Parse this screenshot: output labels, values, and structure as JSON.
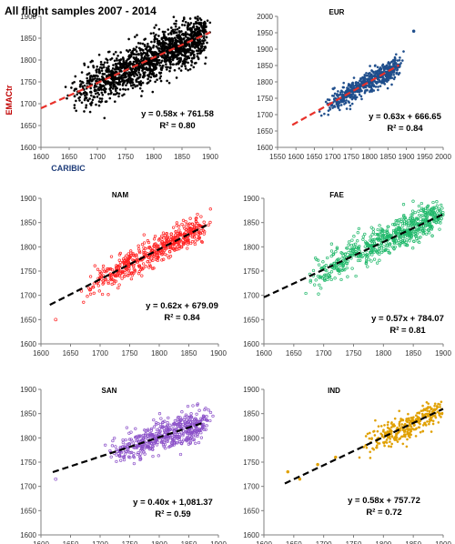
{
  "chart_data": [
    {
      "type": "scatter",
      "title": "All flight samples 2007 - 2014",
      "xlabel": "CARIBIC",
      "ylabel": "EMACtr",
      "xlim": [
        1600,
        1900
      ],
      "ylim": [
        1600,
        1900
      ],
      "xticks": [
        "1600",
        "1650",
        "1700",
        "1750",
        "1800",
        "1850",
        "1900"
      ],
      "yticks": [
        "1600",
        "1650",
        "1700",
        "1750",
        "1800",
        "1850",
        "1900"
      ],
      "point_color": "#000000",
      "fit_color": "#e8312a",
      "fit": {
        "slope": 0.58,
        "intercept": 761.58,
        "x_range": [
          1600,
          1900
        ]
      },
      "equation": "y = 0.58x + 761.58",
      "r2": "R² = 0.80",
      "cloud": {
        "x_range": [
          1620,
          1890
        ],
        "slope": 0.58,
        "intercept": 761.58,
        "spread": 26,
        "count": 1500
      },
      "grid": false
    },
    {
      "type": "scatter",
      "title": "EUR",
      "xlabel": "",
      "ylabel": "",
      "xlim": [
        1550,
        2000
      ],
      "ylim": [
        1600,
        2000
      ],
      "xticks": [
        "1550",
        "1600",
        "1650",
        "1700",
        "1750",
        "1800",
        "1850",
        "1900",
        "1950",
        "2000"
      ],
      "yticks": [
        "1600",
        "1650",
        "1700",
        "1750",
        "1800",
        "1850",
        "1900",
        "1950",
        "2000"
      ],
      "point_color": "#1f4e8c",
      "fit_color": "#e8312a",
      "fit": {
        "slope": 0.63,
        "intercept": 666.65,
        "x_range": [
          1590,
          1880
        ]
      },
      "equation": "y = 0.63x + 666.65",
      "r2": "R² = 0.84",
      "cloud": {
        "x_range": [
          1640,
          1875
        ],
        "slope": 0.63,
        "intercept": 666.65,
        "spread": 16,
        "count": 600
      },
      "outliers": [
        {
          "x": 1920,
          "y": 1955
        }
      ],
      "grid": false
    },
    {
      "type": "scatter",
      "title": "NAM",
      "xlabel": "",
      "ylabel": "",
      "xlim": [
        1600,
        1900
      ],
      "ylim": [
        1600,
        1900
      ],
      "xticks": [
        "1600",
        "1650",
        "1700",
        "1750",
        "1800",
        "1850",
        "1900"
      ],
      "yticks": [
        "1600",
        "1650",
        "1700",
        "1750",
        "1800",
        "1850",
        "1900"
      ],
      "point_color": "#ff2020",
      "fit_color": "#000000",
      "fit": {
        "slope": 0.62,
        "intercept": 679.09,
        "x_range": [
          1615,
          1880
        ]
      },
      "equation": "y = 0.62x + 679.09",
      "r2": "R² = 0.84",
      "cloud": {
        "x_range": [
          1640,
          1870
        ],
        "slope": 0.62,
        "intercept": 679.09,
        "spread": 14,
        "count": 550
      },
      "outliers": [
        {
          "x": 1625,
          "y": 1650
        }
      ],
      "grid": false
    },
    {
      "type": "scatter",
      "title": "FAE",
      "xlabel": "",
      "ylabel": "",
      "xlim": [
        1600,
        1900
      ],
      "ylim": [
        1600,
        1900
      ],
      "xticks": [
        "1600",
        "1650",
        "1700",
        "1750",
        "1800",
        "1850",
        "1900"
      ],
      "yticks": [
        "1600",
        "1650",
        "1700",
        "1750",
        "1800",
        "1850",
        "1900"
      ],
      "point_color": "#1fb86a",
      "fit_color": "#000000",
      "fit": {
        "slope": 0.57,
        "intercept": 784.07,
        "x_range": [
          1600,
          1900
        ]
      },
      "equation": "y = 0.57x + 784.07",
      "r2": "R² = 0.81",
      "cloud": {
        "x_range": [
          1640,
          1895
        ],
        "slope": 0.57,
        "intercept": 784.07,
        "spread": 17,
        "count": 650
      },
      "grid": false
    },
    {
      "type": "scatter",
      "title": "SAN",
      "xlabel": "",
      "ylabel": "",
      "xlim": [
        1600,
        1900
      ],
      "ylim": [
        1600,
        1900
      ],
      "xticks": [
        "1600",
        "1650",
        "1700",
        "1750",
        "1800",
        "1850",
        "1900"
      ],
      "yticks": [
        "1600",
        "1650",
        "1700",
        "1750",
        "1800",
        "1850",
        "1900"
      ],
      "point_color": "#8a4fc8",
      "fit_color": "#000000",
      "fit": {
        "slope": 0.4,
        "intercept": 1081.37,
        "x_range": [
          1620,
          1875
        ]
      },
      "equation": "y = 0.40x + 1,081.37",
      "r2": "R² = 0.59",
      "cloud": {
        "x_range": [
          1690,
          1875
        ],
        "slope": 0.4,
        "intercept": 1081.37,
        "spread": 15,
        "count": 500
      },
      "outliers": [
        {
          "x": 1625,
          "y": 1715
        }
      ],
      "grid": false
    },
    {
      "type": "scatter",
      "title": "IND",
      "xlabel": "",
      "ylabel": "",
      "xlim": [
        1600,
        1900
      ],
      "ylim": [
        1600,
        1900
      ],
      "xticks": [
        "1600",
        "1650",
        "1700",
        "1750",
        "1800",
        "1850",
        "1900"
      ],
      "yticks": [
        "1600",
        "1650",
        "1700",
        "1750",
        "1800",
        "1850",
        "1900"
      ],
      "point_color": "#e0a000",
      "fit_color": "#000000",
      "fit": {
        "slope": 0.58,
        "intercept": 757.72,
        "x_range": [
          1635,
          1900
        ]
      },
      "equation": "y = 0.58x + 757.72",
      "r2": "R² = 0.72",
      "cloud": {
        "x_range": [
          1740,
          1895
        ],
        "slope": 0.58,
        "intercept": 757.72,
        "spread": 14,
        "count": 300
      },
      "outliers": [
        {
          "x": 1640,
          "y": 1730
        },
        {
          "x": 1660,
          "y": 1715
        },
        {
          "x": 1690,
          "y": 1745
        },
        {
          "x": 1720,
          "y": 1760
        }
      ],
      "grid": false
    }
  ]
}
